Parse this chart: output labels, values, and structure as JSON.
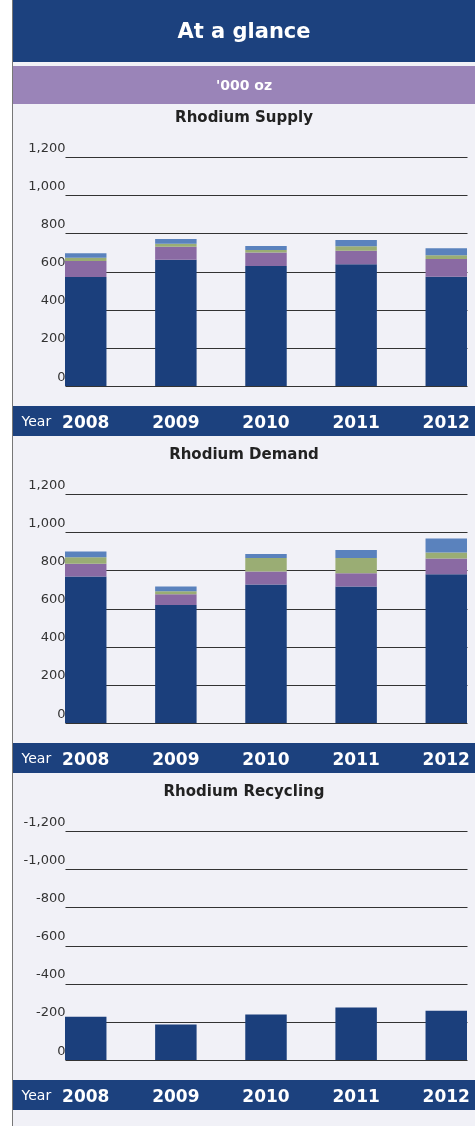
{
  "chart_data": [
    {
      "type": "bar",
      "title": "Rhodium Supply",
      "annotations": [
        "At a glance",
        "'000 oz"
      ],
      "xlabel": "Year",
      "categories": [
        "2008",
        "2009",
        "2010",
        "2011",
        "2012"
      ],
      "stacked": true,
      "grid": "y",
      "ylim": [
        0,
        1200
      ],
      "yticks": [
        0,
        200,
        400,
        600,
        800,
        {
          "value": 1000,
          "label": "1,000"
        },
        {
          "value": 1200,
          "label": "1,200"
        }
      ],
      "series": [
        {
          "color": "#1b3f7c",
          "values": [
            571,
            662,
            629,
            638,
            573
          ]
        },
        {
          "color": "#8a6aa3",
          "values": [
            84,
            68,
            71,
            71,
            93
          ]
        },
        {
          "color": "#9aad74",
          "values": [
            17,
            16,
            13,
            23,
            19
          ]
        },
        {
          "color": "#5a82bd",
          "values": [
            23,
            24,
            21,
            33,
            37
          ]
        }
      ]
    },
    {
      "type": "bar",
      "title": "Rhodium Demand",
      "xlabel": "Year",
      "categories": [
        "2008",
        "2009",
        "2010",
        "2011",
        "2012"
      ],
      "stacked": true,
      "grid": "y",
      "ylim": [
        0,
        1200
      ],
      "yticks": [
        0,
        200,
        400,
        600,
        800,
        {
          "value": 1000,
          "label": "1,000"
        },
        {
          "value": 1200,
          "label": "1,200"
        }
      ],
      "series": [
        {
          "color": "#1b3f7c",
          "values": [
            768,
            618,
            726,
            715,
            780
          ]
        },
        {
          "color": "#8a6aa3",
          "values": [
            66,
            57,
            68,
            70,
            82
          ]
        },
        {
          "color": "#9aad74",
          "values": [
            35,
            16,
            70,
            79,
            31
          ]
        },
        {
          "color": "#5a82bd",
          "values": [
            30,
            24,
            22,
            43,
            74
          ]
        }
      ]
    },
    {
      "type": "bar",
      "title": "Rhodium Recycling",
      "xlabel": "Year",
      "categories": [
        "2008",
        "2009",
        "2010",
        "2011",
        "2012"
      ],
      "grid": "y",
      "ylim": [
        0,
        -1200
      ],
      "yticks": [
        0,
        -200,
        -400,
        -600,
        -800,
        {
          "value": -1000,
          "label": "-1,000"
        },
        {
          "value": -1200,
          "label": "-1,200"
        }
      ],
      "color": "#1b3f7c",
      "values": [
        -226,
        -186,
        -239,
        -275,
        -258
      ]
    }
  ]
}
